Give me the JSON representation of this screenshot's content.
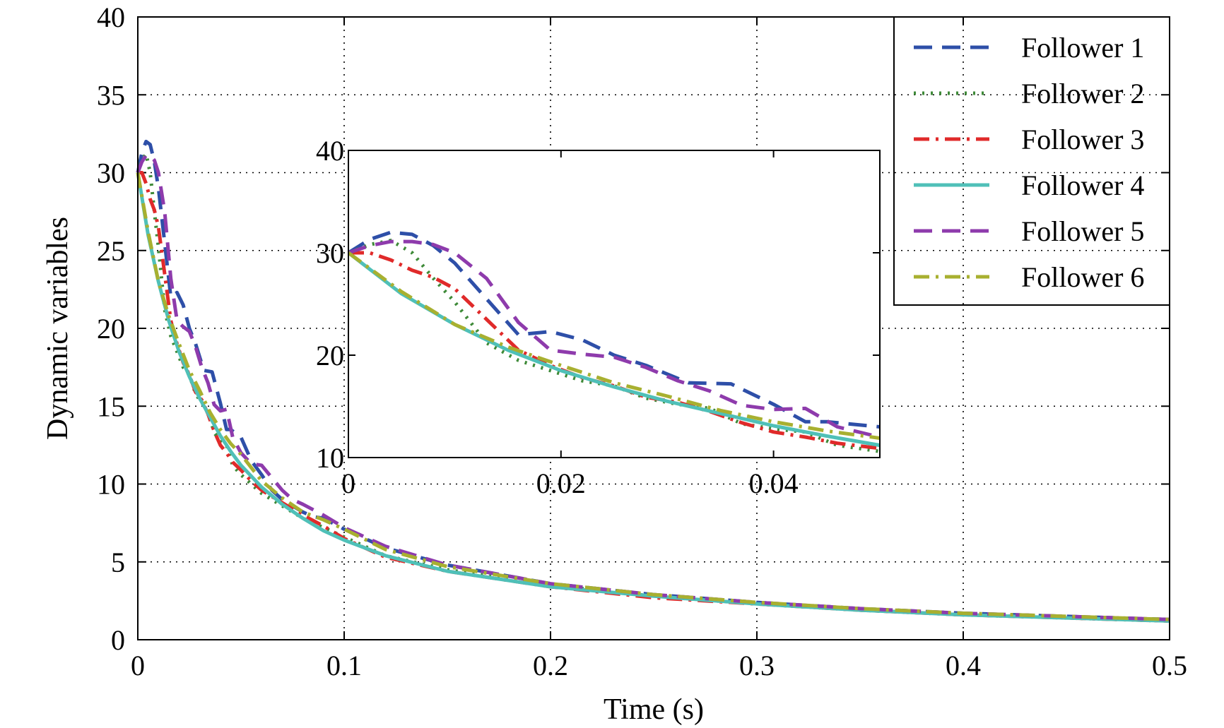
{
  "chart_data": {
    "type": "line",
    "title": "",
    "xlabel": "Time (s)",
    "ylabel": "Dynamic variables",
    "xlim": [
      0,
      0.5
    ],
    "ylim": [
      0,
      40
    ],
    "xticks": [
      0,
      0.1,
      0.2,
      0.3,
      0.4,
      0.5
    ],
    "xtick_labels": [
      "0",
      "0.1",
      "0.2",
      "0.3",
      "0.4",
      "0.5"
    ],
    "yticks": [
      0,
      5,
      10,
      15,
      20,
      25,
      30,
      35,
      40
    ],
    "ytick_labels": [
      "0",
      "5",
      "10",
      "15",
      "20",
      "25",
      "30",
      "35",
      "40"
    ],
    "grid": true,
    "legend_position": "top-right",
    "series": [
      {
        "name": "Follower 1",
        "color": "#2e4fa8",
        "style": "dashed",
        "x": [
          0,
          0.002,
          0.004,
          0.006,
          0.008,
          0.01,
          0.013,
          0.016,
          0.019,
          0.022,
          0.025,
          0.028,
          0.032,
          0.036,
          0.04,
          0.043,
          0.045,
          0.05,
          0.055,
          0.06,
          0.065,
          0.07,
          0.075,
          0.08,
          0.085,
          0.09,
          0.1,
          0.12,
          0.15,
          0.2,
          0.25,
          0.3,
          0.35,
          0.4,
          0.45,
          0.5
        ],
        "y": [
          30,
          31.3,
          32.0,
          31.8,
          30.7,
          29.0,
          25.5,
          22.0,
          22.3,
          21.5,
          20.0,
          19.0,
          17.3,
          17.2,
          15.2,
          13.5,
          13.5,
          13.0,
          11.5,
          10.6,
          9.6,
          9.0,
          8.6,
          8.2,
          7.9,
          7.8,
          7.1,
          5.9,
          4.8,
          3.6,
          2.9,
          2.4,
          2.0,
          1.7,
          1.5,
          1.3
        ]
      },
      {
        "name": "Follower 2",
        "color": "#3e8a38",
        "style": "dotted",
        "x": [
          0,
          0.002,
          0.004,
          0.006,
          0.008,
          0.01,
          0.013,
          0.016,
          0.019,
          0.022,
          0.025,
          0.028,
          0.031,
          0.034,
          0.037,
          0.04,
          0.043,
          0.046,
          0.05,
          0.055,
          0.06,
          0.07,
          0.08,
          0.09,
          0.1,
          0.12,
          0.15,
          0.2,
          0.25,
          0.3,
          0.35,
          0.4,
          0.45,
          0.5
        ],
        "y": [
          30,
          30.8,
          31.2,
          30.0,
          27.5,
          25.2,
          21.2,
          19.5,
          18.5,
          17.5,
          17.0,
          15.8,
          15.2,
          14.8,
          13.3,
          12.8,
          12.5,
          11.2,
          10.6,
          10.0,
          9.4,
          8.6,
          7.8,
          7.2,
          6.6,
          5.4,
          4.5,
          3.5,
          2.8,
          2.3,
          1.9,
          1.6,
          1.4,
          1.2
        ]
      },
      {
        "name": "Follower 3",
        "color": "#e02a2a",
        "style": "dashdot",
        "x": [
          0,
          0.002,
          0.004,
          0.006,
          0.008,
          0.01,
          0.013,
          0.016,
          0.019,
          0.022,
          0.025,
          0.028,
          0.031,
          0.034,
          0.037,
          0.04,
          0.043,
          0.046,
          0.05,
          0.055,
          0.06,
          0.07,
          0.08,
          0.09,
          0.1,
          0.12,
          0.15,
          0.2,
          0.25,
          0.3,
          0.35,
          0.4,
          0.45,
          0.5
        ],
        "y": [
          30,
          30.0,
          29.3,
          28.3,
          27.6,
          26.5,
          23.5,
          20.5,
          19.0,
          17.8,
          17.0,
          15.9,
          15.4,
          14.5,
          13.4,
          12.5,
          12.0,
          11.4,
          10.9,
          10.2,
          9.6,
          8.8,
          8.0,
          7.3,
          6.5,
          5.3,
          4.4,
          3.4,
          2.7,
          2.3,
          1.9,
          1.6,
          1.4,
          1.2
        ]
      },
      {
        "name": "Follower 4",
        "color": "#4fc0b8",
        "style": "solid",
        "x": [
          0,
          0.005,
          0.01,
          0.015,
          0.02,
          0.025,
          0.03,
          0.035,
          0.04,
          0.045,
          0.05,
          0.06,
          0.07,
          0.08,
          0.09,
          0.1,
          0.12,
          0.15,
          0.2,
          0.25,
          0.3,
          0.35,
          0.4,
          0.45,
          0.5
        ],
        "y": [
          30,
          26.0,
          23.0,
          20.5,
          18.5,
          16.9,
          15.5,
          14.3,
          13.1,
          12.1,
          11.2,
          9.8,
          8.7,
          7.8,
          7.0,
          6.4,
          5.4,
          4.4,
          3.4,
          2.8,
          2.3,
          1.9,
          1.6,
          1.4,
          1.2
        ]
      },
      {
        "name": "Follower 5",
        "color": "#8e3bac",
        "style": "dashed",
        "x": [
          0,
          0.002,
          0.004,
          0.006,
          0.008,
          0.01,
          0.013,
          0.016,
          0.019,
          0.022,
          0.025,
          0.028,
          0.031,
          0.034,
          0.037,
          0.04,
          0.043,
          0.046,
          0.05,
          0.055,
          0.06,
          0.065,
          0.07,
          0.075,
          0.08,
          0.09,
          0.1,
          0.12,
          0.15,
          0.2,
          0.25,
          0.3,
          0.35,
          0.4,
          0.45,
          0.5
        ],
        "y": [
          30,
          30.7,
          31.1,
          31.1,
          30.8,
          30.0,
          27.5,
          23.2,
          20.5,
          20.1,
          19.8,
          18.8,
          17.5,
          16.5,
          15.1,
          14.7,
          14.8,
          13.0,
          12.0,
          11.3,
          11.2,
          10.4,
          9.6,
          9.0,
          8.7,
          8.0,
          7.2,
          6.0,
          4.8,
          3.6,
          2.9,
          2.4,
          2.0,
          1.7,
          1.5,
          1.3
        ]
      },
      {
        "name": "Follower 6",
        "color": "#a8b030",
        "style": "dashdot",
        "x": [
          0,
          0.005,
          0.01,
          0.015,
          0.02,
          0.025,
          0.03,
          0.035,
          0.04,
          0.045,
          0.05,
          0.06,
          0.07,
          0.08,
          0.09,
          0.1,
          0.12,
          0.15,
          0.2,
          0.25,
          0.3,
          0.35,
          0.4,
          0.45,
          0.5
        ],
        "y": [
          30,
          26.2,
          23.0,
          20.8,
          19.0,
          17.3,
          16.0,
          14.6,
          13.5,
          12.6,
          11.9,
          10.2,
          9.1,
          8.2,
          7.7,
          7.1,
          5.8,
          4.7,
          3.6,
          2.9,
          2.4,
          2.0,
          1.7,
          1.5,
          1.3
        ]
      }
    ],
    "inset": {
      "xlim": [
        0,
        0.05
      ],
      "ylim": [
        10,
        40
      ],
      "xticks": [
        0,
        0.02,
        0.04
      ],
      "xtick_labels": [
        "0",
        "0.02",
        "0.04"
      ],
      "yticks": [
        10,
        20,
        30,
        40
      ],
      "ytick_labels": [
        "10",
        "20",
        "30",
        "40"
      ]
    }
  }
}
